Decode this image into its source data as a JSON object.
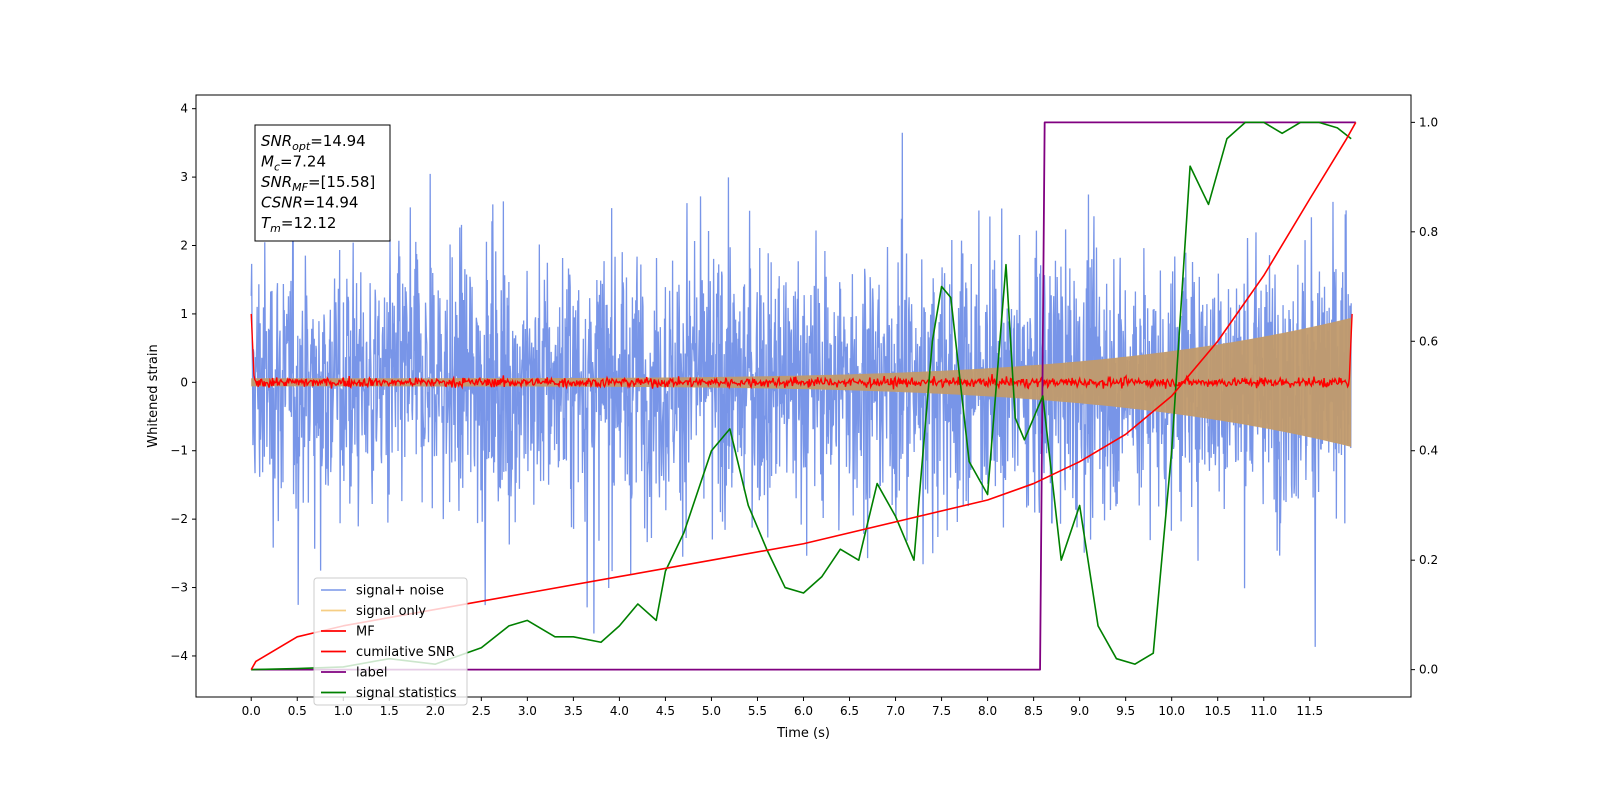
{
  "chart_data": {
    "type": "line",
    "xlabel": "Time (s)",
    "ylabel": "Whitened strain",
    "xlim": [
      -0.6,
      12.6
    ],
    "ylim": [
      -4.6,
      4.2
    ],
    "y2lim": [
      -0.05,
      1.05
    ],
    "x_ticks": [
      "0.0",
      "0.5",
      "1.0",
      "1.5",
      "2.0",
      "2.5",
      "3.0",
      "3.5",
      "4.0",
      "4.5",
      "5.0",
      "5.5",
      "6.0",
      "6.5",
      "7.0",
      "7.5",
      "8.0",
      "8.5",
      "9.0",
      "9.5",
      "10.0",
      "10.5",
      "11.0",
      "11.5"
    ],
    "y_ticks": [
      "4",
      "3",
      "2",
      "1",
      "0",
      "−1",
      "−2",
      "−3",
      "−4"
    ],
    "y2_ticks": [
      "1.0",
      "0.8",
      "0.6",
      "0.4",
      "0.2",
      "0.0"
    ],
    "grid": false,
    "legend_position": "lower-left",
    "annotation": {
      "lines": [
        {
          "base": "SNR",
          "sub": "opt",
          "value": "=14.94"
        },
        {
          "base": "M",
          "sub": "c",
          "value": "=7.24"
        },
        {
          "base": "SNR",
          "sub": "MF",
          "value": "=[15.58]"
        },
        {
          "base": "CSNR",
          "sub": "",
          "value": "=14.94"
        },
        {
          "base": "T",
          "sub": "m",
          "value": "=12.12"
        }
      ]
    },
    "series": [
      {
        "name": "signal+ noise",
        "color": "#7895e8",
        "axis": "left",
        "style": "noise band"
      },
      {
        "name": "signal only",
        "color": "#f5c66e",
        "axis": "left",
        "style": "growing chirp"
      },
      {
        "name": "MF",
        "color": "#ff0000",
        "axis": "left",
        "style": "near zero"
      },
      {
        "name": "cumilative SNR",
        "color": "#ff0000",
        "axis": "right",
        "x": [
          0.0,
          0.05,
          0.5,
          1.0,
          2.0,
          3.0,
          4.0,
          5.0,
          6.0,
          7.0,
          8.0,
          8.5,
          9.0,
          9.5,
          10.0,
          10.5,
          11.0,
          11.5,
          11.9,
          12.0
        ],
        "values": [
          0.0,
          0.015,
          0.06,
          0.08,
          0.11,
          0.14,
          0.17,
          0.2,
          0.23,
          0.27,
          0.31,
          0.34,
          0.38,
          0.43,
          0.5,
          0.6,
          0.72,
          0.86,
          0.97,
          1.0
        ]
      },
      {
        "name": "label",
        "color": "#800080",
        "axis": "right",
        "x": [
          0.0,
          8.57,
          8.62,
          12.0
        ],
        "values": [
          0.0,
          0.0,
          1.0,
          1.0
        ]
      },
      {
        "name": "signal statistics",
        "color": "#008000",
        "axis": "right",
        "x": [
          0.0,
          0.5,
          1.0,
          1.5,
          2.0,
          2.5,
          2.8,
          3.0,
          3.3,
          3.5,
          3.8,
          4.0,
          4.2,
          4.4,
          4.5,
          4.7,
          5.0,
          5.2,
          5.4,
          5.6,
          5.8,
          6.0,
          6.2,
          6.4,
          6.6,
          6.8,
          7.0,
          7.2,
          7.4,
          7.5,
          7.6,
          7.8,
          8.0,
          8.2,
          8.3,
          8.4,
          8.6,
          8.8,
          9.0,
          9.2,
          9.4,
          9.6,
          9.8,
          10.0,
          10.2,
          10.4,
          10.6,
          10.8,
          11.0,
          11.2,
          11.4,
          11.6,
          11.8,
          11.95
        ],
        "values": [
          0.0,
          0.002,
          0.005,
          0.02,
          0.01,
          0.04,
          0.08,
          0.09,
          0.06,
          0.06,
          0.05,
          0.08,
          0.12,
          0.09,
          0.18,
          0.25,
          0.4,
          0.44,
          0.3,
          0.22,
          0.15,
          0.14,
          0.17,
          0.22,
          0.2,
          0.34,
          0.28,
          0.2,
          0.6,
          0.7,
          0.68,
          0.38,
          0.32,
          0.74,
          0.46,
          0.42,
          0.5,
          0.2,
          0.3,
          0.08,
          0.02,
          0.01,
          0.03,
          0.4,
          0.92,
          0.85,
          0.97,
          1.0,
          1.0,
          0.98,
          1.0,
          1.0,
          0.99,
          0.97
        ]
      }
    ]
  }
}
